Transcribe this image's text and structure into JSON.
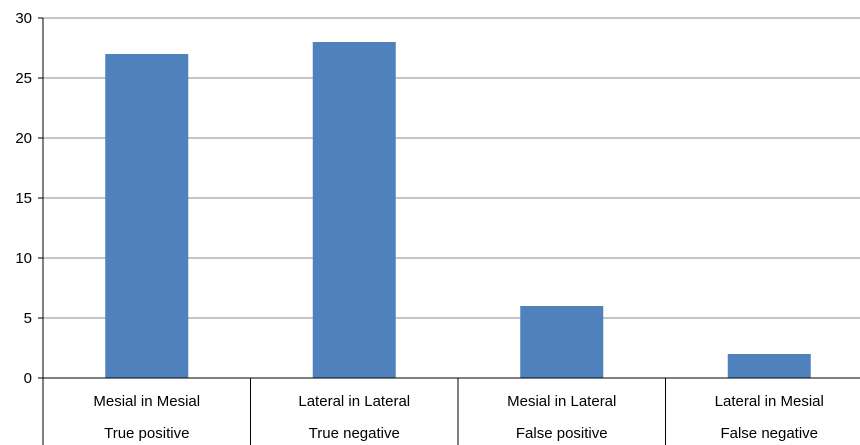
{
  "chart_data": {
    "type": "bar",
    "categories": [
      [
        "Mesial in Mesial",
        "True positive"
      ],
      [
        "Lateral in Lateral",
        "True negative"
      ],
      [
        "Mesial in Lateral",
        "False positive"
      ],
      [
        "Lateral in Mesial",
        "False negative"
      ]
    ],
    "values": [
      27,
      28,
      6,
      2
    ],
    "ylim": [
      0,
      30
    ],
    "yticks": [
      0,
      5,
      10,
      15,
      20,
      25,
      30
    ],
    "grid": true,
    "legend": "none",
    "bar_color": "#4f81bd",
    "grid_color": "#888888"
  }
}
